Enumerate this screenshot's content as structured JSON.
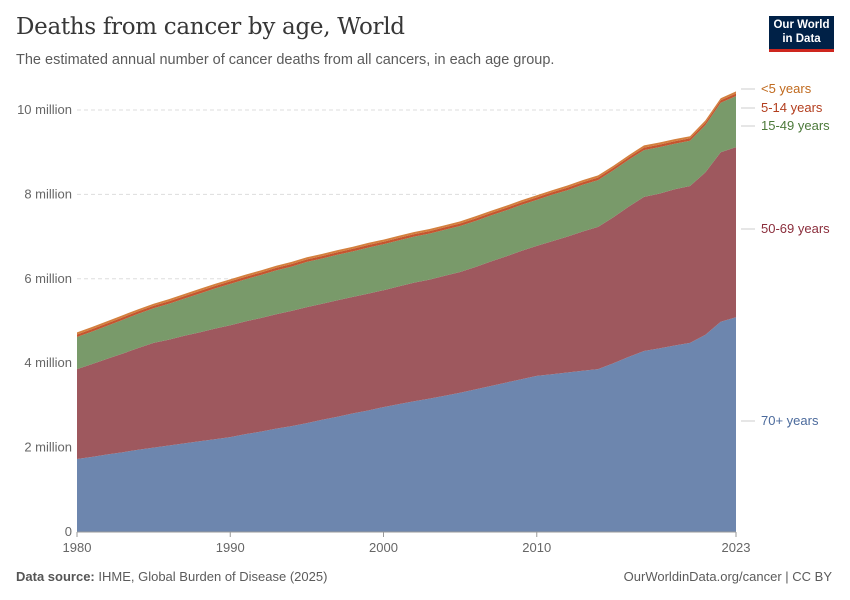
{
  "header": {
    "title": "Deaths from cancer by age, World",
    "subtitle": "The estimated annual number of cancer deaths from all cancers, in each age group.",
    "logo": "Our World in Data"
  },
  "footer": {
    "source_label": "Data source:",
    "source": "IHME, Global Burden of Disease (2025)",
    "link": "OurWorldinData.org/cancer | CC BY"
  },
  "chart_data": {
    "type": "area",
    "stacked": true,
    "title": "Deaths from cancer by age, World",
    "xlim": [
      1980,
      2023
    ],
    "ylim": [
      0,
      10500000
    ],
    "grid": true,
    "legend": "right-inline",
    "x_ticks": [
      "1980",
      "1990",
      "2000",
      "2010",
      "2023"
    ],
    "y_ticks": [
      {
        "value": 0,
        "label": "0"
      },
      {
        "value": 2000000,
        "label": "2 million"
      },
      {
        "value": 4000000,
        "label": "4 million"
      },
      {
        "value": 6000000,
        "label": "6 million"
      },
      {
        "value": 8000000,
        "label": "8 million"
      },
      {
        "value": 10000000,
        "label": "10 million"
      }
    ],
    "x": [
      1980,
      1981,
      1982,
      1983,
      1984,
      1985,
      1986,
      1987,
      1988,
      1989,
      1990,
      1991,
      1992,
      1993,
      1994,
      1995,
      1996,
      1997,
      1998,
      1999,
      2000,
      2001,
      2002,
      2003,
      2004,
      2005,
      2006,
      2007,
      2008,
      2009,
      2010,
      2011,
      2012,
      2013,
      2014,
      2015,
      2016,
      2017,
      2018,
      2019,
      2020,
      2021,
      2022,
      2023
    ],
    "unit": "million",
    "series": [
      {
        "name": "70+ years",
        "color": "#6d86ae",
        "label_color": "#4b6a9c",
        "values": [
          1.73,
          1.78,
          1.84,
          1.89,
          1.95,
          2.0,
          2.05,
          2.1,
          2.15,
          2.2,
          2.25,
          2.32,
          2.38,
          2.45,
          2.51,
          2.58,
          2.66,
          2.73,
          2.81,
          2.88,
          2.96,
          3.03,
          3.1,
          3.16,
          3.23,
          3.3,
          3.38,
          3.46,
          3.54,
          3.62,
          3.7,
          3.74,
          3.78,
          3.82,
          3.86,
          4.0,
          4.15,
          4.29,
          4.35,
          4.42,
          4.48,
          4.67,
          4.98,
          5.09
        ]
      },
      {
        "name": "50-69 years",
        "color": "#9e585e",
        "label_color": "#8b2e3c",
        "values": [
          2.13,
          2.2,
          2.27,
          2.34,
          2.41,
          2.48,
          2.51,
          2.55,
          2.58,
          2.62,
          2.65,
          2.67,
          2.69,
          2.71,
          2.73,
          2.75,
          2.75,
          2.76,
          2.76,
          2.77,
          2.77,
          2.79,
          2.81,
          2.82,
          2.84,
          2.86,
          2.9,
          2.95,
          2.99,
          3.04,
          3.08,
          3.15,
          3.22,
          3.3,
          3.37,
          3.46,
          3.56,
          3.65,
          3.67,
          3.7,
          3.72,
          3.85,
          4.02,
          4.03
        ]
      },
      {
        "name": "15-49 years",
        "color": "#799a6a",
        "label_color": "#4c7a3a",
        "values": [
          0.76,
          0.77,
          0.78,
          0.8,
          0.81,
          0.82,
          0.85,
          0.88,
          0.92,
          0.95,
          0.98,
          1.0,
          1.02,
          1.04,
          1.05,
          1.07,
          1.07,
          1.08,
          1.08,
          1.09,
          1.09,
          1.09,
          1.09,
          1.09,
          1.09,
          1.09,
          1.09,
          1.09,
          1.09,
          1.09,
          1.09,
          1.1,
          1.1,
          1.11,
          1.11,
          1.11,
          1.11,
          1.11,
          1.1,
          1.08,
          1.07,
          1.12,
          1.17,
          1.21
        ]
      },
      {
        "name": "5-14 years",
        "color": "#c4552f",
        "label_color": "#b33e1e",
        "values": [
          0.06,
          0.06,
          0.06,
          0.06,
          0.06,
          0.06,
          0.06,
          0.06,
          0.06,
          0.06,
          0.06,
          0.06,
          0.06,
          0.06,
          0.06,
          0.06,
          0.06,
          0.06,
          0.06,
          0.06,
          0.06,
          0.06,
          0.06,
          0.06,
          0.06,
          0.06,
          0.06,
          0.06,
          0.06,
          0.06,
          0.06,
          0.06,
          0.06,
          0.06,
          0.06,
          0.06,
          0.06,
          0.06,
          0.06,
          0.06,
          0.06,
          0.06,
          0.06,
          0.06
        ]
      },
      {
        "name": "<5 years",
        "color": "#d3803e",
        "label_color": "#c06a1e",
        "values": [
          0.05,
          0.05,
          0.05,
          0.05,
          0.05,
          0.05,
          0.05,
          0.05,
          0.05,
          0.05,
          0.05,
          0.05,
          0.05,
          0.05,
          0.05,
          0.05,
          0.05,
          0.05,
          0.05,
          0.05,
          0.05,
          0.05,
          0.05,
          0.05,
          0.05,
          0.05,
          0.05,
          0.05,
          0.05,
          0.05,
          0.05,
          0.05,
          0.05,
          0.05,
          0.05,
          0.05,
          0.05,
          0.05,
          0.05,
          0.05,
          0.05,
          0.05,
          0.05,
          0.05
        ]
      }
    ]
  }
}
